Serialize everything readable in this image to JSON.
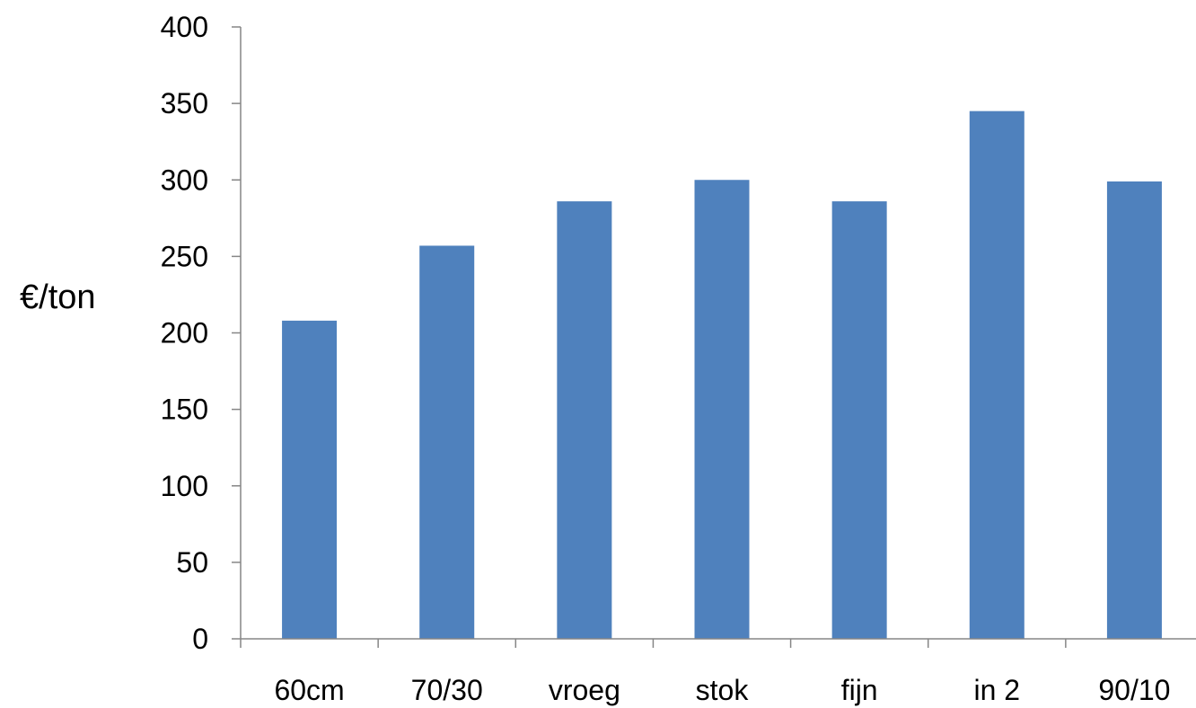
{
  "chart_data": {
    "type": "bar",
    "title": "",
    "xlabel": "",
    "ylabel": "€/ton",
    "categories": [
      "60cm",
      "70/30",
      "vroeg",
      "stok",
      "fijn",
      "in 2",
      "90/10"
    ],
    "values": [
      208,
      257,
      286,
      300,
      286,
      345,
      299
    ],
    "ylim": [
      0,
      400
    ],
    "yticks": [
      0,
      50,
      100,
      150,
      200,
      250,
      300,
      350,
      400
    ],
    "ytick_labels": [
      "0",
      "50",
      "100",
      "150",
      "200",
      "250",
      "300",
      "350",
      "400"
    ],
    "grid": false,
    "legend": false,
    "bar_color": "#4F81BD",
    "axis_color": "#868686"
  }
}
